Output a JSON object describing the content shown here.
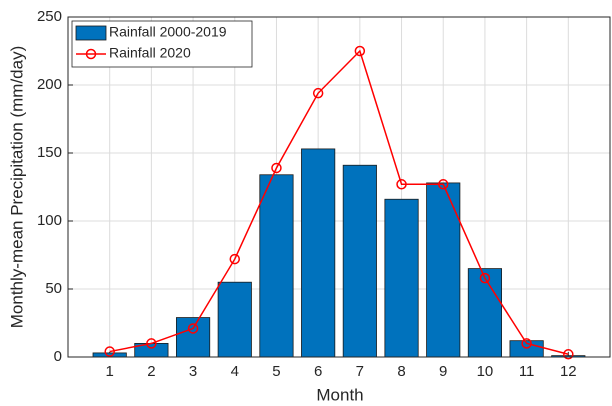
{
  "chart_data": {
    "type": "bar",
    "xlabel": "Month",
    "ylabel": "Monthly-mean Precipitation (mm/day)",
    "x": [
      1,
      2,
      3,
      4,
      5,
      6,
      7,
      8,
      9,
      10,
      11,
      12
    ],
    "xlim": [
      0,
      13
    ],
    "xticks": [
      1,
      2,
      3,
      4,
      5,
      6,
      7,
      8,
      9,
      10,
      11,
      12
    ],
    "ylim": [
      0,
      250
    ],
    "yticks": [
      0,
      50,
      100,
      150,
      200,
      250
    ],
    "grid": true,
    "legend": "top-left",
    "series": [
      {
        "name": "Rainfall 2000-2019",
        "type": "bar",
        "color": "#0072bd",
        "values": [
          3,
          10,
          29,
          55,
          134,
          153,
          141,
          116,
          128,
          65,
          12,
          1
        ]
      },
      {
        "name": "Rainfall 2020",
        "type": "line",
        "color": "#ff0000",
        "values": [
          4,
          10,
          21,
          72,
          139,
          194,
          225,
          127,
          127,
          58,
          10,
          2
        ]
      }
    ]
  }
}
